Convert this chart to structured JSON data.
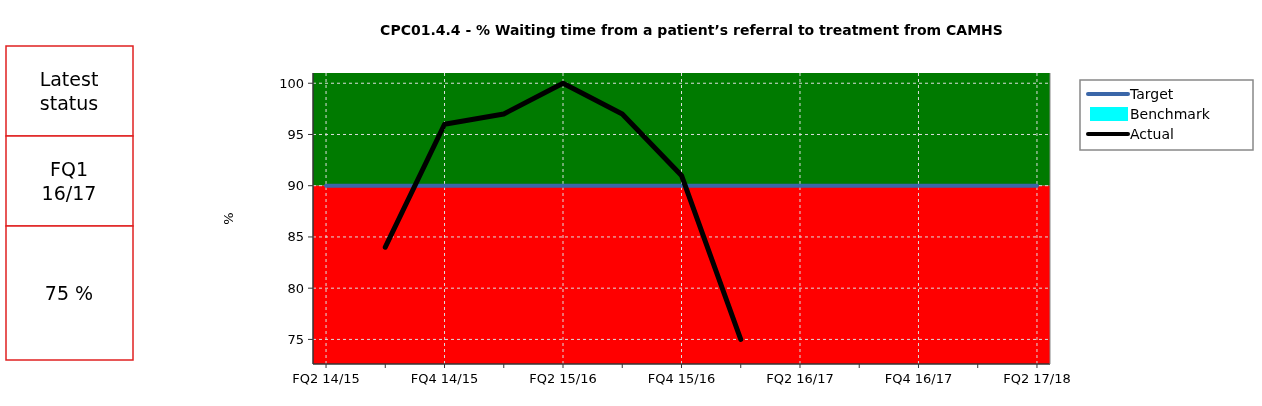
{
  "chart_data": {
    "type": "line",
    "title": "CPC01.4.4 - % Waiting time from a patient’s referral to treatment from CAMHS",
    "ylabel": "%",
    "categories": [
      "FQ2 14/15",
      null,
      "FQ4 14/15",
      null,
      "FQ2 15/16",
      null,
      "FQ4 15/16",
      null,
      "FQ2 16/17",
      null,
      "FQ4 16/17",
      null,
      "FQ2 17/18"
    ],
    "series": [
      {
        "name": "Target",
        "color": "#3a66a8",
        "values": [
          90,
          90,
          90,
          90,
          90,
          90,
          90,
          90,
          90,
          90,
          90,
          90,
          90
        ]
      },
      {
        "name": "Benchmark",
        "type": "area",
        "color": "#00ffff",
        "values": [
          null,
          null,
          null,
          null,
          null,
          null,
          null,
          null,
          null,
          null,
          null,
          null,
          null
        ]
      },
      {
        "name": "Actual",
        "color": "#000000",
        "values": [
          null,
          84,
          96,
          97,
          100,
          97,
          91,
          75,
          null,
          null,
          null,
          null,
          null
        ]
      }
    ],
    "ylim": [
      72.6,
      101
    ],
    "yticks": [
      75,
      80,
      85,
      90,
      95,
      100
    ],
    "bands": [
      {
        "axis": "y",
        "from": 90,
        "to": 101,
        "color": "#007a00"
      },
      {
        "axis": "y",
        "from": 72.6,
        "to": 90,
        "color": "#ff0000"
      }
    ],
    "grid": true,
    "legend": "right",
    "annotations": [
      "Latest status",
      "FQ1 16/17",
      "75 %"
    ]
  }
}
